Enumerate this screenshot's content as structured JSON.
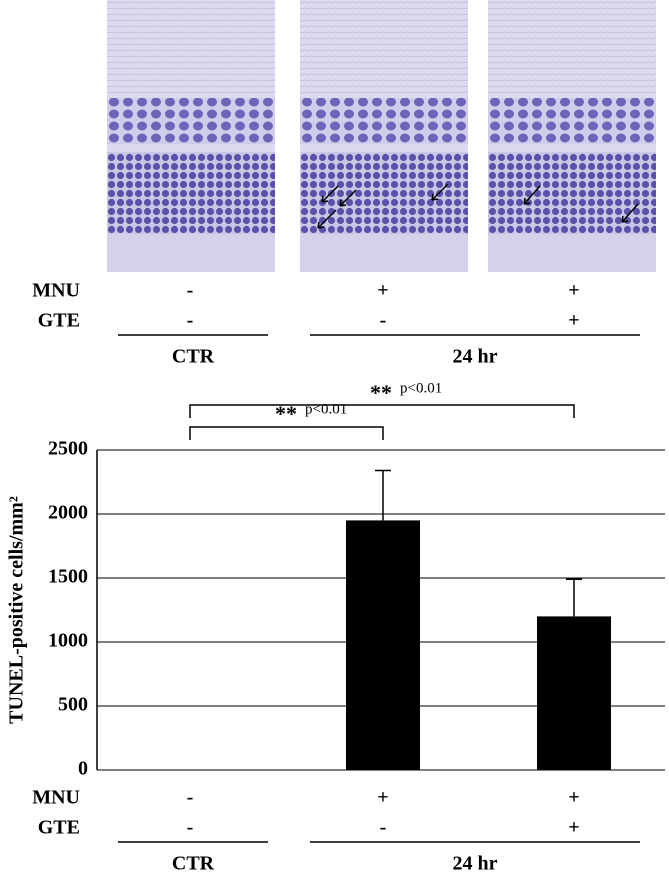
{
  "micrographs": {
    "rows": [
      {
        "name": "MNU",
        "values": [
          "-",
          "+",
          "+"
        ]
      },
      {
        "name": "GTE",
        "values": [
          "-",
          "-",
          "+"
        ]
      }
    ],
    "groups": [
      "CTR",
      "24 hr"
    ]
  },
  "chart_data": {
    "type": "bar",
    "ylabel": "TUNEL-positive cells/mm²",
    "values": [
      0,
      1950,
      1200
    ],
    "errors": [
      null,
      390,
      290
    ],
    "color": "#000000",
    "ylim": [
      0,
      2500
    ],
    "yticks": [
      0,
      500,
      1000,
      1500,
      2000,
      2500
    ],
    "grid": true,
    "annotations": [
      {
        "stars": "**",
        "text": "p<0.01"
      },
      {
        "stars": "**",
        "text": "p<0.01"
      }
    ],
    "rows": [
      {
        "name": "MNU",
        "values": [
          "-",
          "+",
          "+"
        ]
      },
      {
        "name": "GTE",
        "values": [
          "-",
          "-",
          "+"
        ]
      }
    ],
    "groups": [
      "CTR",
      "24 hr"
    ]
  }
}
